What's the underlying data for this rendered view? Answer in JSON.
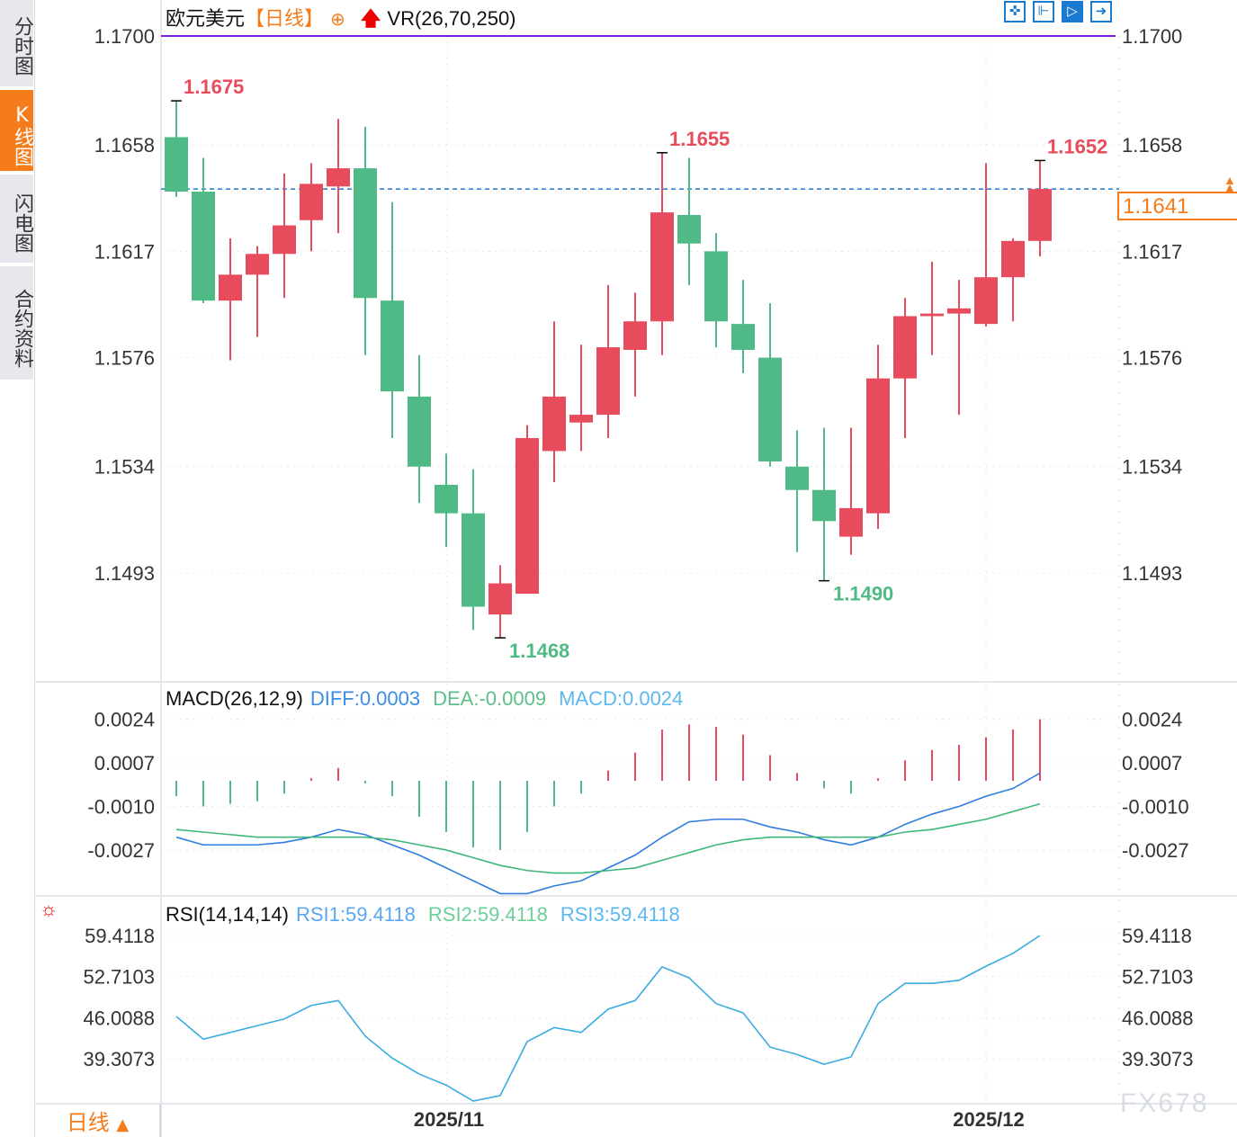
{
  "sidebar": {
    "tabs": [
      {
        "label": "分时图"
      },
      {
        "label": "K线图",
        "active": true
      },
      {
        "label": "闪电图"
      },
      {
        "label": "合约资料"
      }
    ]
  },
  "header": {
    "symbol": "欧元美元",
    "period_bracket": "【日线】",
    "add_icon": "circle-plus-icon",
    "vr_icon": "red-up-arrow-icon",
    "vr_label": "VR(26,70,250)"
  },
  "toolbar": {
    "icons": [
      "crosshair-icon",
      "fit-left-icon",
      "zoom-range-icon",
      "scroll-right-icon"
    ]
  },
  "current_price": "1.1641",
  "period_button": {
    "label": "日线",
    "icon": "triangle-up-icon"
  },
  "watermark": "FX678",
  "colors": {
    "up": "#e84b5c",
    "down": "#4fba86",
    "diff": "#2f7de0",
    "dea": "#3fb77a",
    "rsi": "#3aace0",
    "highlight_line": "#7b1fe0",
    "current_line": "#1a7ad0",
    "accent": "#f57c1a"
  },
  "chart_data": [
    {
      "type": "candlestick",
      "title": "欧元美元",
      "yticks": [
        "1.1700",
        "1.1658",
        "1.1617",
        "1.1576",
        "1.1534",
        "1.1493"
      ],
      "ylim": [
        1.1454,
        1.17
      ],
      "xticks": [
        {
          "label": "2025/11",
          "index": 10
        },
        {
          "label": "2025/12",
          "index": 30
        }
      ],
      "annotations": [
        {
          "label": "1.1675",
          "index": 0,
          "type": "high"
        },
        {
          "label": "1.1655",
          "index": 18,
          "type": "high"
        },
        {
          "label": "1.1652",
          "index": 32,
          "type": "high"
        },
        {
          "label": "1.1468",
          "index": 12,
          "type": "low"
        },
        {
          "label": "1.1490",
          "index": 24,
          "type": "low"
        }
      ],
      "ohlc": [
        [
          1.1661,
          1.1675,
          1.1638,
          1.164
        ],
        [
          1.164,
          1.1653,
          1.1597,
          1.1598
        ],
        [
          1.1598,
          1.1622,
          1.1575,
          1.1608
        ],
        [
          1.1608,
          1.1619,
          1.1584,
          1.1616
        ],
        [
          1.1616,
          1.1647,
          1.1599,
          1.1627
        ],
        [
          1.1629,
          1.1651,
          1.1617,
          1.1643
        ],
        [
          1.1642,
          1.1668,
          1.1624,
          1.1649
        ],
        [
          1.1649,
          1.1665,
          1.1577,
          1.1599
        ],
        [
          1.1598,
          1.1636,
          1.1545,
          1.1563
        ],
        [
          1.1561,
          1.1577,
          1.152,
          1.1534
        ],
        [
          1.1527,
          1.1539,
          1.1503,
          1.1516
        ],
        [
          1.1516,
          1.1533,
          1.1471,
          1.148
        ],
        [
          1.1477,
          1.1496,
          1.1468,
          1.1489
        ],
        [
          1.1485,
          1.155,
          1.1485,
          1.1545
        ],
        [
          1.154,
          1.159,
          1.1528,
          1.1561
        ],
        [
          1.1551,
          1.1581,
          1.154,
          1.1554
        ],
        [
          1.1554,
          1.1604,
          1.1545,
          1.158
        ],
        [
          1.1579,
          1.1601,
          1.1561,
          1.159
        ],
        [
          1.159,
          1.1655,
          1.1577,
          1.1632
        ],
        [
          1.1631,
          1.1653,
          1.1604,
          1.162
        ],
        [
          1.1617,
          1.1624,
          1.158,
          1.159
        ],
        [
          1.1589,
          1.1606,
          1.157,
          1.1579
        ],
        [
          1.1576,
          1.1597,
          1.1534,
          1.1536
        ],
        [
          1.1534,
          1.1548,
          1.1501,
          1.1525
        ],
        [
          1.1525,
          1.1549,
          1.149,
          1.1513
        ],
        [
          1.1507,
          1.1549,
          1.15,
          1.1518
        ],
        [
          1.1516,
          1.1581,
          1.151,
          1.1568
        ],
        [
          1.1568,
          1.1599,
          1.1545,
          1.1592
        ],
        [
          1.1592,
          1.1613,
          1.1577,
          1.1593
        ],
        [
          1.1593,
          1.1606,
          1.1554,
          1.1595
        ],
        [
          1.1589,
          1.1651,
          1.1588,
          1.1607
        ],
        [
          1.1607,
          1.1622,
          1.159,
          1.1621
        ],
        [
          1.1621,
          1.1652,
          1.1615,
          1.1641
        ]
      ]
    },
    {
      "type": "macd",
      "title": "MACD(26,12,9)",
      "legend": [
        "DIFF:0.0003",
        "DEA:-0.0009",
        "MACD:0.0024"
      ],
      "yticks": [
        "0.0024",
        "0.0007",
        "-0.0010",
        "-0.0027"
      ],
      "macd": [
        -0.0006,
        -0.001,
        -0.0009,
        -0.0008,
        -0.0005,
        0.0001,
        0.0005,
        -0.0001,
        -0.0006,
        -0.0014,
        -0.002,
        -0.0026,
        -0.0027,
        -0.002,
        -0.001,
        -0.0005,
        0.0004,
        0.0011,
        0.002,
        0.0022,
        0.0021,
        0.0018,
        0.001,
        0.0003,
        -0.0003,
        -0.0005,
        0.0001,
        0.0008,
        0.0012,
        0.0014,
        0.0017,
        0.002,
        0.0024
      ],
      "diff": [
        -0.0022,
        -0.0025,
        -0.0025,
        -0.0025,
        -0.0024,
        -0.0022,
        -0.0019,
        -0.0021,
        -0.0025,
        -0.0029,
        -0.0034,
        -0.0039,
        -0.0044,
        -0.0044,
        -0.0041,
        -0.0039,
        -0.0034,
        -0.0029,
        -0.0022,
        -0.0016,
        -0.0015,
        -0.0015,
        -0.0018,
        -0.002,
        -0.0023,
        -0.0025,
        -0.0022,
        -0.0017,
        -0.0013,
        -0.001,
        -0.0006,
        -0.0003,
        0.0003
      ],
      "dea": [
        -0.0019,
        -0.002,
        -0.0021,
        -0.0022,
        -0.0022,
        -0.0022,
        -0.0022,
        -0.0022,
        -0.0023,
        -0.0025,
        -0.0027,
        -0.003,
        -0.0033,
        -0.0035,
        -0.0036,
        -0.0036,
        -0.0035,
        -0.0034,
        -0.0031,
        -0.0028,
        -0.0025,
        -0.0023,
        -0.0022,
        -0.0022,
        -0.0022,
        -0.0022,
        -0.0022,
        -0.002,
        -0.0019,
        -0.0017,
        -0.0015,
        -0.0012,
        -0.0009
      ]
    },
    {
      "type": "line",
      "title": "RSI(14,14,14)",
      "legend": [
        "RSI1:59.4118",
        "RSI2:59.4118",
        "RSI3:59.4118"
      ],
      "yticks": [
        "59.4118",
        "52.7103",
        "46.0088",
        "39.3073"
      ],
      "rsi": [
        46.2,
        42.5,
        43.6,
        44.7,
        45.8,
        48.0,
        48.8,
        43.0,
        39.4,
        36.8,
        35.0,
        32.4,
        33.3,
        42.1,
        44.4,
        43.6,
        47.4,
        48.8,
        54.3,
        52.5,
        48.3,
        46.8,
        41.2,
        40.0,
        38.4,
        39.6,
        48.3,
        51.6,
        51.6,
        52.1,
        54.4,
        56.5,
        59.4118
      ]
    }
  ]
}
